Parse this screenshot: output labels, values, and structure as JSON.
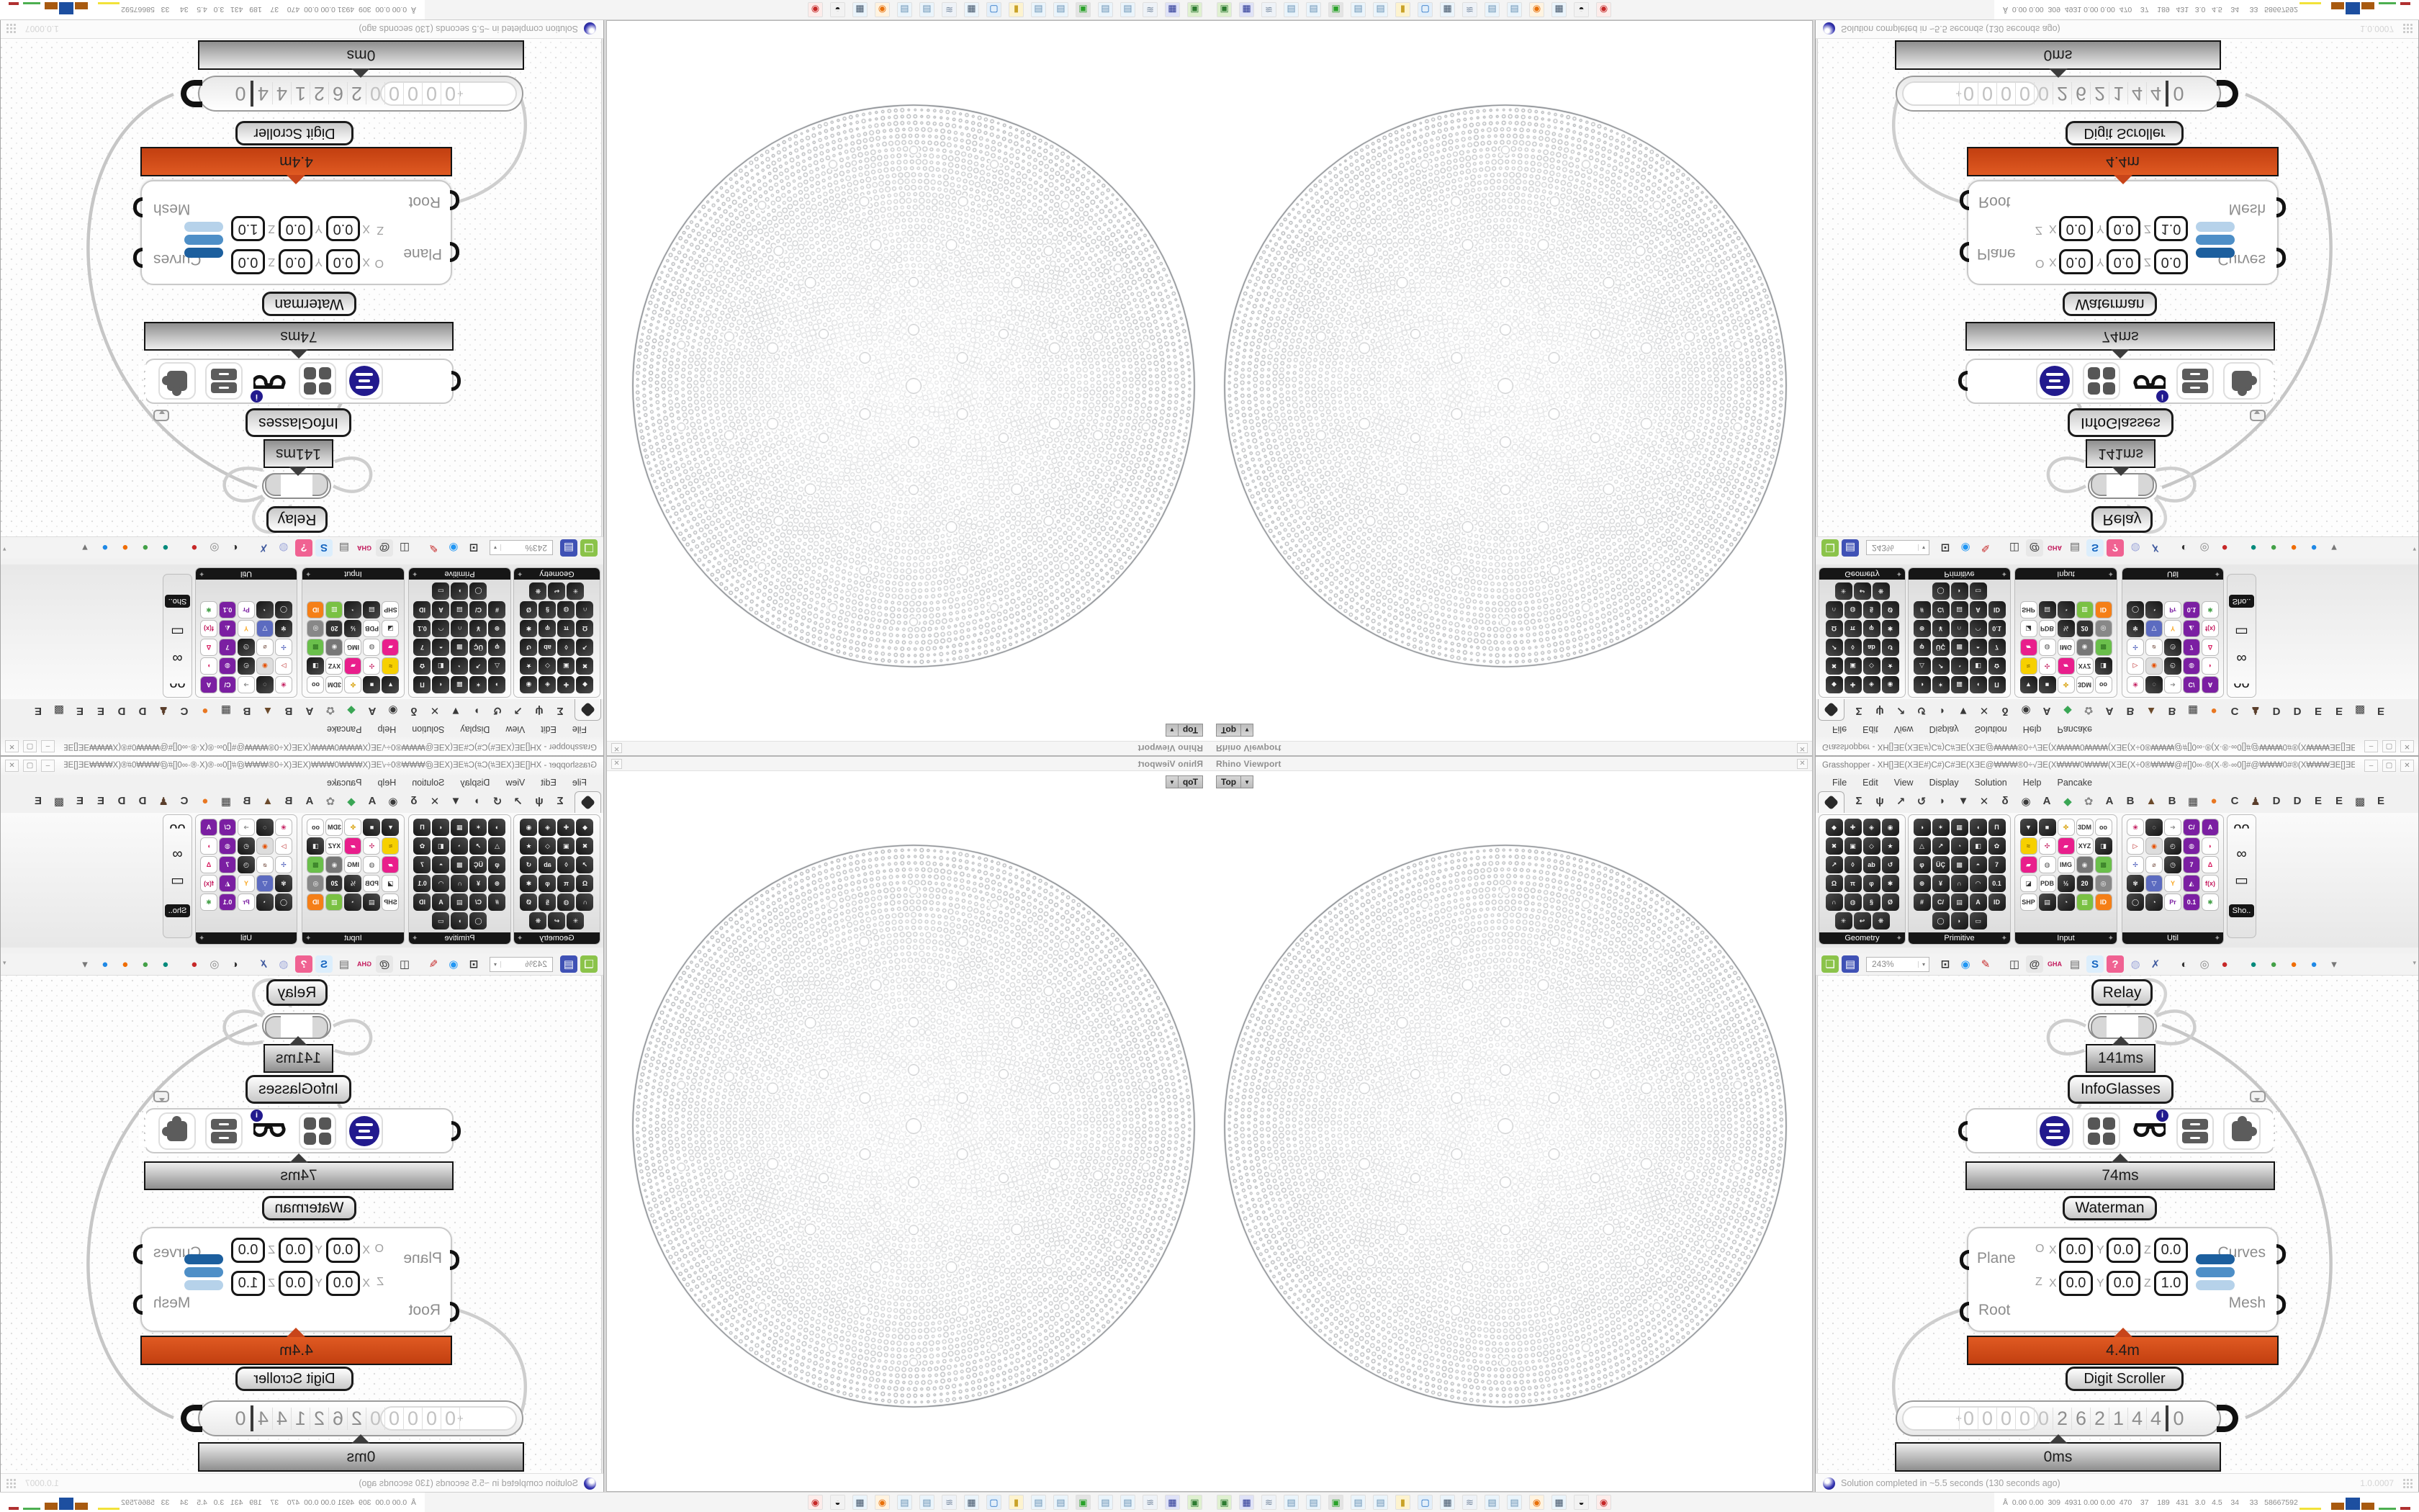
{
  "grasshopper": {
    "window_title": "Grasshopper - XH[]ƎE(XƎE#)C#)C#ƎE(XƎE@₩₩₩®0÷√ƎE(X₩₩₩0₩₩₩(XƎE(X÷0®₩₩₩@#[]0∞·®(X·®·∞0[]#@₩₩₩0#®(X₩₩₩ƎE[]ƎE₩₩₩[]#@₩₩₩@#[]0∞·®(X·®·∞0[]#@₩₩₩®0÷√ƎE(X₩₩₩0...",
    "window_buttons": {
      "minimize": "–",
      "maximize": "▢",
      "close": "✕"
    },
    "menu": [
      "File",
      "Edit",
      "View",
      "Display",
      "Solution",
      "Help",
      "Pancake"
    ],
    "tabs": [
      {
        "g": "",
        "active": true,
        "name": "tab-params"
      },
      {
        "g": "Σ"
      },
      {
        "g": "ψ"
      },
      {
        "g": "↗"
      },
      {
        "g": "↺"
      },
      {
        "g": "◗"
      },
      {
        "g": "▼"
      },
      {
        "g": "✕"
      },
      {
        "g": "δ"
      },
      {
        "g": "◉"
      },
      {
        "g": "A"
      },
      {
        "g": "◆",
        "c": "#3aa655"
      },
      {
        "g": "✿",
        "c": "#888888"
      },
      {
        "g": "A"
      },
      {
        "g": "B"
      },
      {
        "g": "▲",
        "c": "#6b4a2b"
      },
      {
        "g": "B"
      },
      {
        "g": "▦"
      },
      {
        "g": "●",
        "c": "#e87722"
      },
      {
        "g": "C"
      },
      {
        "g": "♟",
        "c": "#5a3e2b"
      },
      {
        "g": "D"
      },
      {
        "g": "D"
      },
      {
        "g": "E"
      },
      {
        "g": "E"
      },
      {
        "g": "▩"
      },
      {
        "g": "E"
      }
    ],
    "palette": {
      "panels": [
        {
          "label": "Geometry",
          "cells": [
            "◆",
            "✚",
            "◈",
            "◉",
            "✖",
            "▣",
            "◇",
            "★",
            "↗",
            "◊",
            "ab",
            "↺",
            "Ω",
            "π",
            "φ",
            "✱",
            "∩",
            "◍",
            "§",
            "Ø",
            "✳",
            "↩",
            "❋"
          ]
        },
        {
          "label": "Primitive",
          "cells": [
            "◑",
            "✶",
            "▦",
            "◖",
            "Π",
            "△",
            "↗",
            "◔",
            "◧",
            "✿",
            "φ",
            "ÜÇ",
            "▩",
            "◓",
            "7",
            "⊕",
            "¥",
            "∩",
            "◠",
            "0.1",
            "#",
            "C/",
            "▤",
            "A",
            "ID",
            "◯",
            "◗",
            "▭"
          ]
        },
        {
          "label": "Input",
          "cells": [
            "▼",
            "■",
            [
              "✤",
              "#ffffff",
              "#d9a514"
            ],
            [
              "3DM",
              "#ffffff",
              "#333333"
            ],
            [
              "oo",
              "#ffffff",
              "#333333"
            ],
            [
              "≈",
              "#f6d000",
              "#7a5c00"
            ],
            [
              "✣",
              "#ffffff",
              "#c2185b"
            ],
            [
              "▰",
              "#e91e8c",
              "#ffffff"
            ],
            [
              "XYZ",
              "#ffffff",
              "#333333"
            ],
            "◨",
            [
              "▰",
              "#e91e8c",
              "#ffffff"
            ],
            [
              "◍",
              "#ffffff",
              "#555555"
            ],
            [
              "IMG",
              "#ffffff",
              "#333333"
            ],
            [
              "◉",
              "#777777",
              "#eeeeee"
            ],
            [
              "▩",
              "#6abf4b",
              "#2c6e1f"
            ],
            [
              "◪",
              "#ffffff",
              "#333333"
            ],
            [
              "PDB",
              "#ffffff",
              "#333333"
            ],
            "½",
            [
              "20",
              "#333333",
              "#ffffff"
            ],
            [
              "◎",
              "#888888",
              "#ffffff"
            ],
            [
              "SHP",
              "#ffffff",
              "#333333"
            ],
            "▤",
            "◔",
            [
              "▥",
              "#7ac143",
              "#ffffff"
            ],
            [
              "ID",
              "#f57f17",
              "#ffffff"
            ]
          ]
        },
        {
          "label": "Util",
          "cells": [
            [
              "❀",
              "#ffffff",
              "#c2185b"
            ],
            "◌",
            [
              "➔",
              "#ffffff",
              "#888888"
            ],
            [
              "C/",
              "#7b1fa2",
              "#ffffff"
            ],
            [
              "A",
              "#7b1fa2",
              "#ffffff"
            ],
            [
              "▷",
              "#ffffff",
              "#b71c1c"
            ],
            [
              "◉",
              "#dddddd",
              "#e65100"
            ],
            "◴",
            [
              "◍",
              "#7b1fa2",
              "#ffffff"
            ],
            [
              "◗",
              "#ffffff",
              "#d81b60"
            ],
            [
              "✢",
              "#ffffff",
              "#3f51b5"
            ],
            [
              "⌀",
              "#ffffff",
              "#8d6e63"
            ],
            "◷",
            [
              "7",
              "#7b1fa2",
              "#ffffff"
            ],
            [
              "Δ",
              "#ffffff",
              "#d81b60"
            ],
            "✾",
            [
              "▽",
              "#5c6bc0",
              "#ffffff"
            ],
            [
              "Y",
              "#ffffff",
              "#f9a825"
            ],
            [
              "◭",
              "#7b1fa2",
              "#ffffff"
            ],
            [
              "f(x)",
              "#ffffff",
              "#c2185b"
            ],
            "◯",
            "◔",
            [
              "Pr",
              "#ffffff",
              "#7b1fa2"
            ],
            [
              "0.1",
              "#7b1fa2",
              "#ffffff"
            ],
            [
              "✱",
              "#ffffff",
              "#43a047"
            ]
          ]
        }
      ],
      "side_panel": {
        "label": "Sho..",
        "icons": [
          "ᴖᴖ",
          "∞",
          "▭"
        ]
      }
    },
    "toolbar": {
      "zoom_value": "243%",
      "icons": [
        {
          "name": "open-file-icon",
          "g": "❏",
          "bg": "#8bc34a",
          "fg": "#fff"
        },
        {
          "name": "save-file-icon",
          "g": "▤",
          "bg": "#3f51b5",
          "fg": "#fff"
        },
        {
          "name": "zoom-combo",
          "combo": true
        },
        {
          "name": "zoom-extents-icon",
          "g": "⊡",
          "fg": "#333"
        },
        {
          "name": "preview-eye-icon",
          "g": "◉",
          "fg": "#2196f3"
        },
        {
          "name": "sketch-pen-icon",
          "g": "✎",
          "fg": "#c62828"
        },
        {
          "name": "gap"
        },
        {
          "name": "camera-icon",
          "g": "◫",
          "fg": "#333"
        },
        {
          "name": "mention-icon",
          "g": "@",
          "bg": "#e8e8e8",
          "fg": "#444"
        },
        {
          "name": "gha-icon",
          "g": "GHA",
          "fg": "#c2185b"
        },
        {
          "name": "document-icon",
          "g": "▤",
          "fg": "#666"
        },
        {
          "name": "search-icon",
          "g": "S",
          "bg": "#dceefc",
          "fg": "#1565c0"
        },
        {
          "name": "package-icon",
          "g": "?",
          "bg": "#f06292",
          "fg": "#fff"
        },
        {
          "name": "idea-icon",
          "g": "◍",
          "fg": "#9fa8da"
        },
        {
          "name": "wires-icon",
          "g": "✗",
          "fg": "#405a9e"
        },
        {
          "name": "gap"
        },
        {
          "name": "sphere-pair-icon",
          "g": "◐",
          "fg": "#333"
        },
        {
          "name": "cylinder-icon",
          "g": "◎",
          "fg": "#888"
        },
        {
          "name": "red-cylinder-icon",
          "g": "●",
          "fg": "#c62828"
        },
        {
          "name": "gap"
        },
        {
          "name": "jack-teal-icon",
          "g": "●",
          "fg": "#00897b"
        },
        {
          "name": "jack-green-icon",
          "g": "●",
          "fg": "#43a047"
        },
        {
          "name": "jack-orange-icon",
          "g": "●",
          "fg": "#ef6c00"
        },
        {
          "name": "jack-blue-icon",
          "g": "●",
          "fg": "#1e88e5"
        },
        {
          "name": "dropdown-arrow-icon",
          "g": "▾",
          "fg": "#777"
        }
      ]
    },
    "canvas": {
      "relay_label": "Relay",
      "relay_time": "141ms",
      "infoglasses_label": "InfoGlasses",
      "infoglasses_time": "74ms",
      "waterman_label": "Waterman",
      "waterman_time": "4.4m",
      "scroller_label": "Digit Scroller",
      "scroller_time": "0ms",
      "waterman": {
        "inputs": [
          "Plane",
          "Root"
        ],
        "outputs": [
          "Curves",
          "Mesh"
        ],
        "plane_rows": [
          {
            "tag": "O",
            "x_label": "X",
            "x": "0.0",
            "y_label": "Y",
            "y": "0.0",
            "z_label": "Z",
            "z": "0.0"
          },
          {
            "tag": "Z",
            "x_label": "X",
            "x": "0.0",
            "y_label": "Y",
            "y": "0.0",
            "z_label": "Z",
            "z": "1.0"
          }
        ]
      },
      "scroller_sign": "+",
      "scroller_digits": [
        "0",
        "0",
        "0",
        "0",
        "0",
        "2",
        "6",
        "2",
        "1",
        "4",
        "4"
      ],
      "scroller_decimal": "0"
    },
    "status": {
      "message": "Solution completed in ~5.5 seconds (130 seconds ago)",
      "version": "1.0.0007"
    }
  },
  "viewport": {
    "title": "Rhino Viewport",
    "view_tab": "Top",
    "dropdown": "▼",
    "close": "✕"
  },
  "taskbar": {
    "icons": [
      {
        "name": "device-icon",
        "g": "▣",
        "bg": "#dff0d0",
        "fg": "#2e7d32"
      },
      {
        "name": "floppy-icon",
        "g": "▦",
        "bg": "#dfe2f7",
        "fg": "#283593"
      },
      {
        "name": "script-icon",
        "g": "≋",
        "bg": "#eef2f7",
        "fg": "#7789a0"
      },
      {
        "name": "notepad-icon",
        "g": "▤",
        "bg": "#eaf4fb",
        "fg": "#6b93b5"
      },
      {
        "name": "notepad-icon",
        "g": "▤",
        "bg": "#eaf4fb",
        "fg": "#6b93b5"
      },
      {
        "name": "pc-icon",
        "g": "▣",
        "bg": "#e4e4e4",
        "fg": "#2aa22a"
      },
      {
        "name": "notepad-icon",
        "g": "▤",
        "bg": "#eaf4fb",
        "fg": "#6b93b5"
      },
      {
        "name": "notepad-icon",
        "g": "▤",
        "bg": "#eaf4fb",
        "fg": "#6b93b5"
      },
      {
        "name": "folder-icon",
        "g": "▮",
        "bg": "#fdf3cf",
        "fg": "#c9a227"
      },
      {
        "name": "pc-blue-icon",
        "g": "▢",
        "bg": "#e3effa",
        "fg": "#1565c0"
      },
      {
        "name": "calculator-icon",
        "g": "▦",
        "bg": "#eaf4fb",
        "fg": "#44566b"
      },
      {
        "name": "script-icon",
        "g": "≋",
        "bg": "#eef2f7",
        "fg": "#7789a0"
      },
      {
        "name": "notepad-icon",
        "g": "▤",
        "bg": "#eaf4fb",
        "fg": "#6b93b5"
      },
      {
        "name": "notepad-icon",
        "g": "▤",
        "bg": "#eaf4fb",
        "fg": "#6b93b5"
      },
      {
        "name": "firefox-icon",
        "g": "◉",
        "bg": "#fff3e0",
        "fg": "#e8710a"
      },
      {
        "name": "calculator-icon",
        "g": "▦",
        "bg": "#eaf4fb",
        "fg": "#44566b"
      },
      {
        "name": "swirl-icon",
        "g": "◒",
        "bg": "#f2f2f2",
        "fg": "#111111"
      },
      {
        "name": "badge-icon",
        "g": "◉",
        "bg": "#fdecea",
        "fg": "#c62828"
      }
    ],
    "stats_prefix": "Å",
    "stats": "0.00 0.00  309  4931 0.00 0.00  470    37    189   431   3.0   4.5    34     33   58667592"
  }
}
